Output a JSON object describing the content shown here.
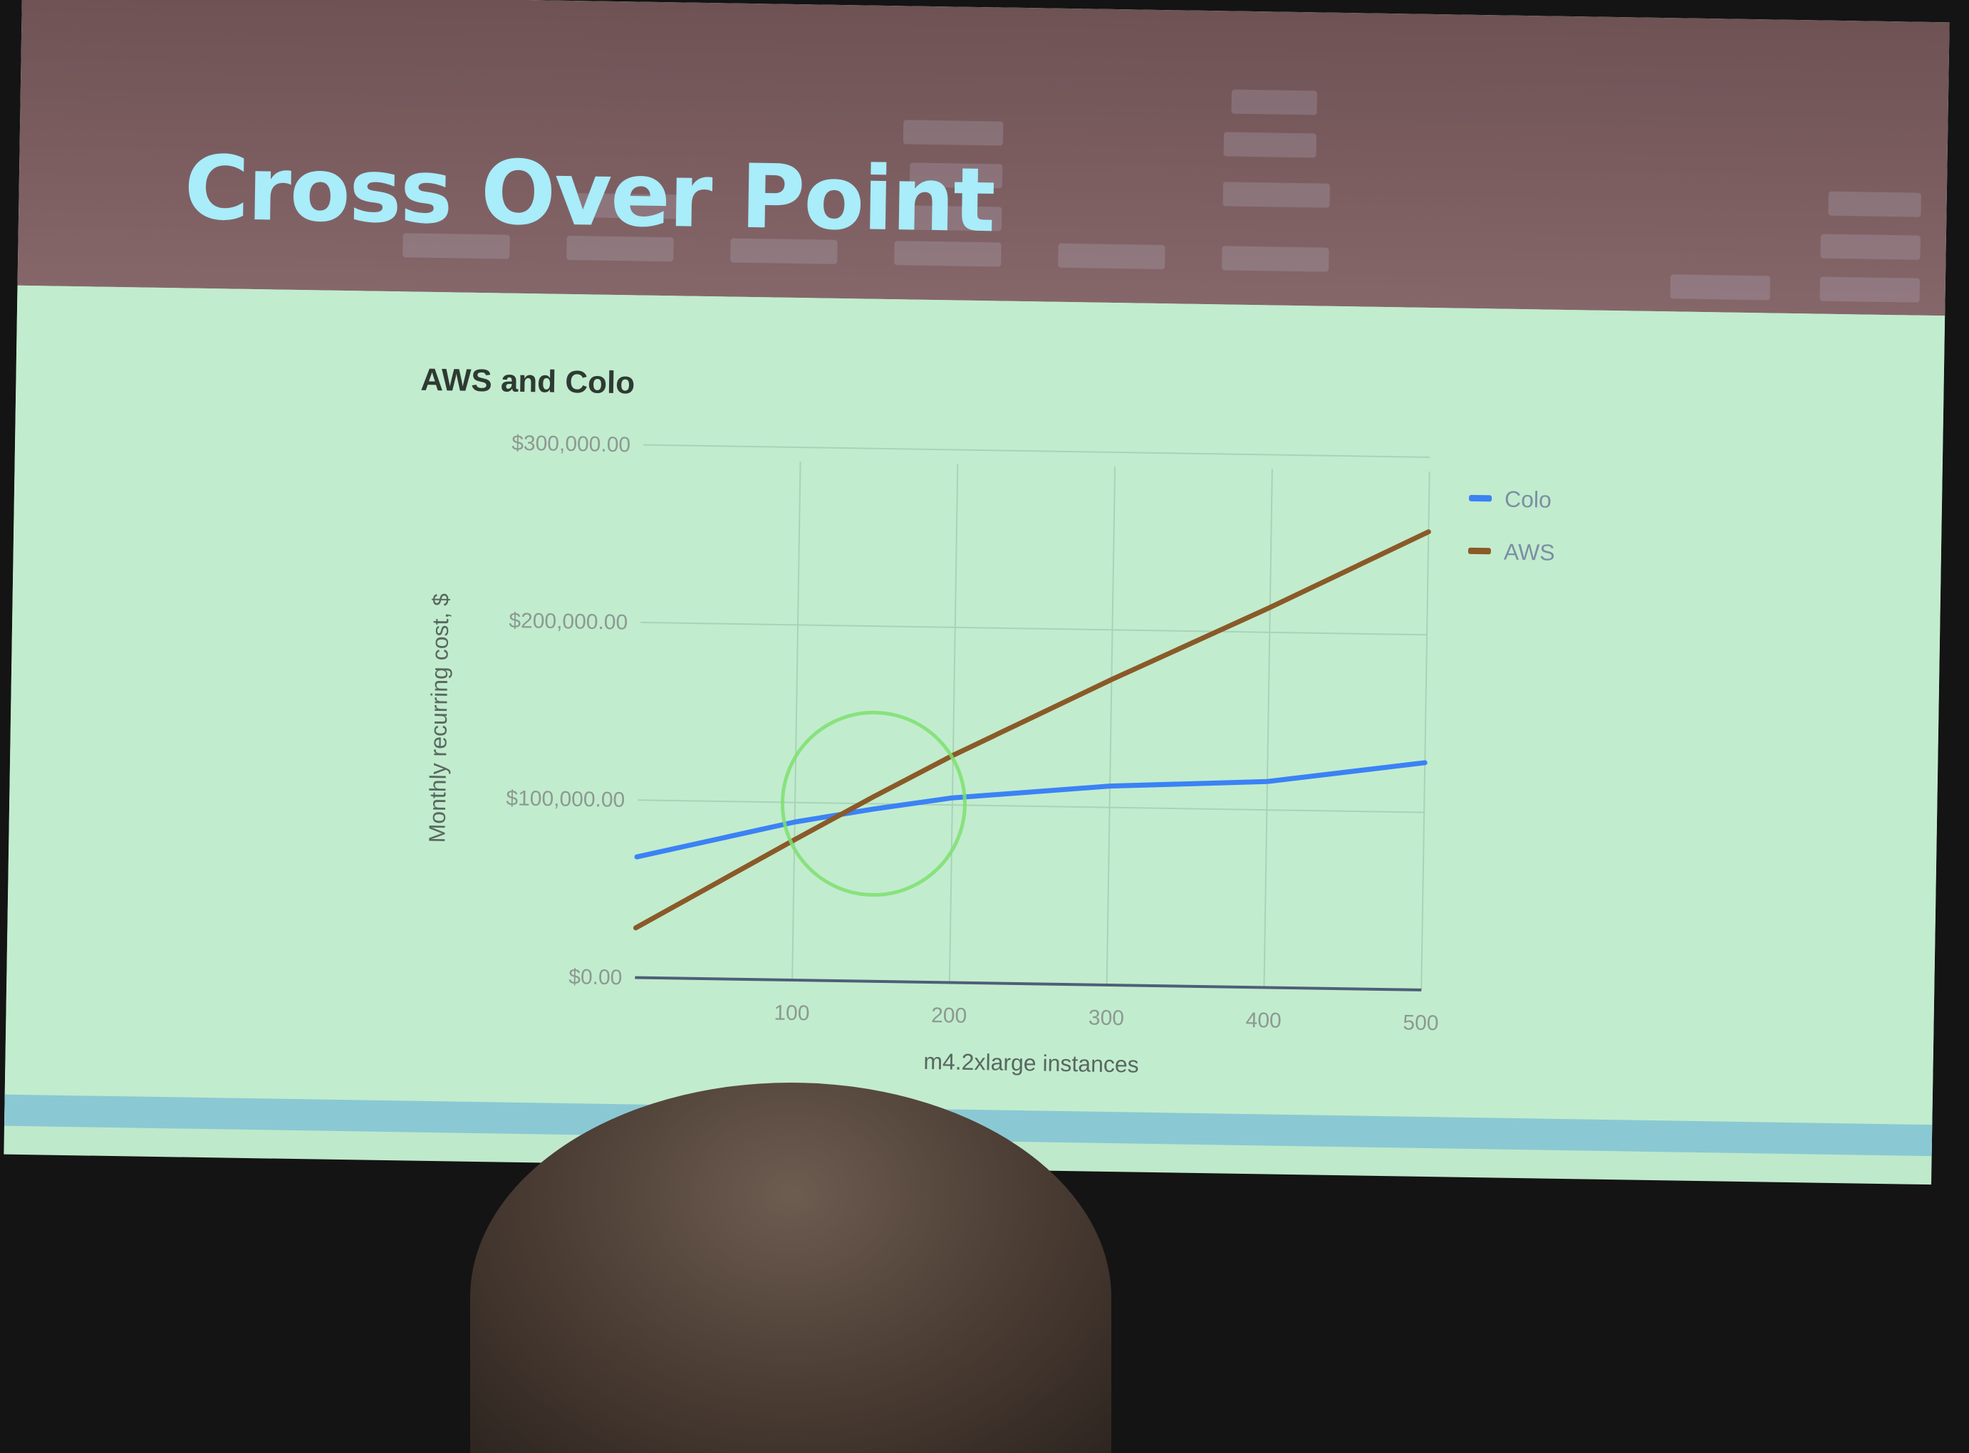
{
  "slide": {
    "title": "Cross Over Point"
  },
  "chart_data": {
    "type": "line",
    "title": "AWS and Colo",
    "xlabel": "m4.2xlarge instances",
    "ylabel": "Monthly recurring cost, $",
    "xlim": [
      0,
      500
    ],
    "ylim": [
      0,
      300000
    ],
    "x_ticks": [
      "100",
      "200",
      "300",
      "400",
      "500"
    ],
    "y_ticks": [
      "$0.00",
      "$100,000.00",
      "$200,000.00",
      "$300,000.00"
    ],
    "grid": true,
    "legend_position": "right",
    "series": [
      {
        "name": "Colo",
        "color": "#3b82f6",
        "x": [
          0,
          100,
          150,
          200,
          300,
          400,
          500
        ],
        "y": [
          68000,
          89000,
          97000,
          104000,
          112000,
          116000,
          128000
        ]
      },
      {
        "name": "AWS",
        "color": "#8a5a28",
        "x": [
          0,
          100,
          150,
          200,
          300,
          400,
          500
        ],
        "y": [
          28000,
          79000,
          104000,
          128000,
          172000,
          214000,
          258000
        ]
      }
    ],
    "annotations": [
      {
        "type": "circle",
        "x": 150,
        "y": 100000,
        "color": "#7ee06e"
      }
    ]
  }
}
